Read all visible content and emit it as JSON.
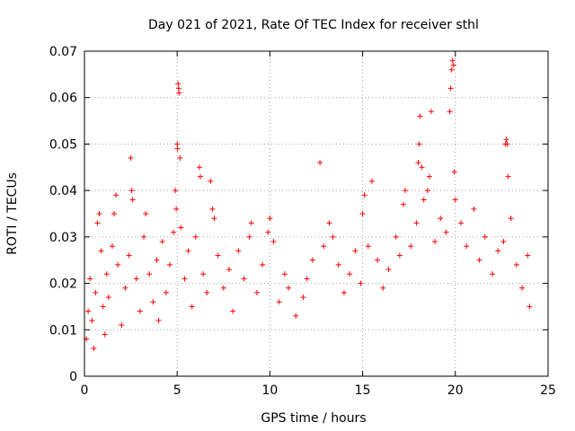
{
  "chart_data": {
    "type": "scatter",
    "title": "Day 021 of 2021, Rate Of TEC Index for receiver sthl",
    "xlabel": "GPS time / hours",
    "ylabel": "ROTI / TECUs",
    "xlim": [
      0,
      25
    ],
    "ylim": [
      0,
      0.07
    ],
    "xticks": [
      0,
      5,
      10,
      15,
      20,
      25
    ],
    "yticks": [
      0,
      0.01,
      0.02,
      0.03,
      0.04,
      0.05,
      0.06,
      0.07
    ],
    "xtick_labels": [
      "0",
      "5",
      "10",
      "15",
      "20",
      "25"
    ],
    "ytick_labels": [
      "0",
      "0.01",
      "0.02",
      "0.03",
      "0.04",
      "0.05",
      "0.06",
      "0.07"
    ],
    "grid": true,
    "marker": "+",
    "series": [
      {
        "name": "ROTI",
        "color": "#ff0000",
        "points": [
          [
            0.1,
            0.008
          ],
          [
            0.2,
            0.014
          ],
          [
            0.3,
            0.021
          ],
          [
            0.4,
            0.012
          ],
          [
            0.5,
            0.006
          ],
          [
            0.6,
            0.018
          ],
          [
            0.7,
            0.033
          ],
          [
            0.8,
            0.035
          ],
          [
            0.9,
            0.027
          ],
          [
            1.0,
            0.015
          ],
          [
            1.1,
            0.009
          ],
          [
            1.2,
            0.022
          ],
          [
            1.3,
            0.017
          ],
          [
            1.5,
            0.028
          ],
          [
            1.6,
            0.035
          ],
          [
            1.7,
            0.039
          ],
          [
            1.8,
            0.024
          ],
          [
            2.0,
            0.011
          ],
          [
            2.2,
            0.019
          ],
          [
            2.4,
            0.026
          ],
          [
            2.5,
            0.047
          ],
          [
            2.55,
            0.04
          ],
          [
            2.6,
            0.038
          ],
          [
            2.8,
            0.021
          ],
          [
            3.0,
            0.014
          ],
          [
            3.2,
            0.03
          ],
          [
            3.3,
            0.035
          ],
          [
            3.5,
            0.022
          ],
          [
            3.7,
            0.016
          ],
          [
            3.9,
            0.025
          ],
          [
            4.0,
            0.012
          ],
          [
            4.2,
            0.029
          ],
          [
            4.4,
            0.018
          ],
          [
            4.6,
            0.024
          ],
          [
            4.8,
            0.031
          ],
          [
            4.9,
            0.04
          ],
          [
            4.95,
            0.036
          ],
          [
            5.0,
            0.05
          ],
          [
            5.02,
            0.049
          ],
          [
            5.05,
            0.063
          ],
          [
            5.08,
            0.062
          ],
          [
            5.1,
            0.061
          ],
          [
            5.15,
            0.047
          ],
          [
            5.2,
            0.032
          ],
          [
            5.4,
            0.021
          ],
          [
            5.6,
            0.027
          ],
          [
            5.8,
            0.015
          ],
          [
            6.0,
            0.03
          ],
          [
            6.2,
            0.045
          ],
          [
            6.25,
            0.043
          ],
          [
            6.4,
            0.022
          ],
          [
            6.6,
            0.018
          ],
          [
            6.8,
            0.042
          ],
          [
            6.9,
            0.036
          ],
          [
            7.0,
            0.034
          ],
          [
            7.2,
            0.026
          ],
          [
            7.5,
            0.019
          ],
          [
            7.8,
            0.023
          ],
          [
            8.0,
            0.014
          ],
          [
            8.3,
            0.027
          ],
          [
            8.6,
            0.021
          ],
          [
            8.9,
            0.03
          ],
          [
            9.0,
            0.033
          ],
          [
            9.3,
            0.018
          ],
          [
            9.6,
            0.024
          ],
          [
            9.9,
            0.031
          ],
          [
            10.0,
            0.034
          ],
          [
            10.2,
            0.029
          ],
          [
            10.5,
            0.016
          ],
          [
            10.8,
            0.022
          ],
          [
            11.0,
            0.019
          ],
          [
            11.4,
            0.013
          ],
          [
            11.8,
            0.017
          ],
          [
            12.0,
            0.021
          ],
          [
            12.3,
            0.025
          ],
          [
            12.7,
            0.046
          ],
          [
            12.9,
            0.028
          ],
          [
            13.2,
            0.033
          ],
          [
            13.4,
            0.03
          ],
          [
            13.7,
            0.024
          ],
          [
            14.0,
            0.018
          ],
          [
            14.3,
            0.022
          ],
          [
            14.6,
            0.027
          ],
          [
            14.9,
            0.02
          ],
          [
            15.0,
            0.035
          ],
          [
            15.1,
            0.039
          ],
          [
            15.3,
            0.028
          ],
          [
            15.5,
            0.042
          ],
          [
            15.8,
            0.025
          ],
          [
            16.1,
            0.019
          ],
          [
            16.4,
            0.023
          ],
          [
            16.8,
            0.03
          ],
          [
            17.0,
            0.026
          ],
          [
            17.2,
            0.037
          ],
          [
            17.3,
            0.04
          ],
          [
            17.6,
            0.028
          ],
          [
            17.9,
            0.033
          ],
          [
            18.0,
            0.046
          ],
          [
            18.05,
            0.05
          ],
          [
            18.1,
            0.056
          ],
          [
            18.2,
            0.045
          ],
          [
            18.3,
            0.038
          ],
          [
            18.5,
            0.04
          ],
          [
            18.6,
            0.043
          ],
          [
            18.7,
            0.057
          ],
          [
            18.9,
            0.029
          ],
          [
            19.2,
            0.034
          ],
          [
            19.5,
            0.031
          ],
          [
            19.7,
            0.057
          ],
          [
            19.75,
            0.062
          ],
          [
            19.8,
            0.066
          ],
          [
            19.85,
            0.068
          ],
          [
            19.9,
            0.067
          ],
          [
            19.95,
            0.044
          ],
          [
            20.0,
            0.038
          ],
          [
            20.3,
            0.033
          ],
          [
            20.6,
            0.028
          ],
          [
            21.0,
            0.036
          ],
          [
            21.3,
            0.025
          ],
          [
            21.6,
            0.03
          ],
          [
            22.0,
            0.022
          ],
          [
            22.3,
            0.027
          ],
          [
            22.6,
            0.029
          ],
          [
            22.7,
            0.05
          ],
          [
            22.75,
            0.051
          ],
          [
            22.8,
            0.05
          ],
          [
            22.85,
            0.043
          ],
          [
            23.0,
            0.034
          ],
          [
            23.3,
            0.024
          ],
          [
            23.6,
            0.019
          ],
          [
            23.9,
            0.026
          ],
          [
            24.0,
            0.015
          ]
        ]
      }
    ]
  }
}
